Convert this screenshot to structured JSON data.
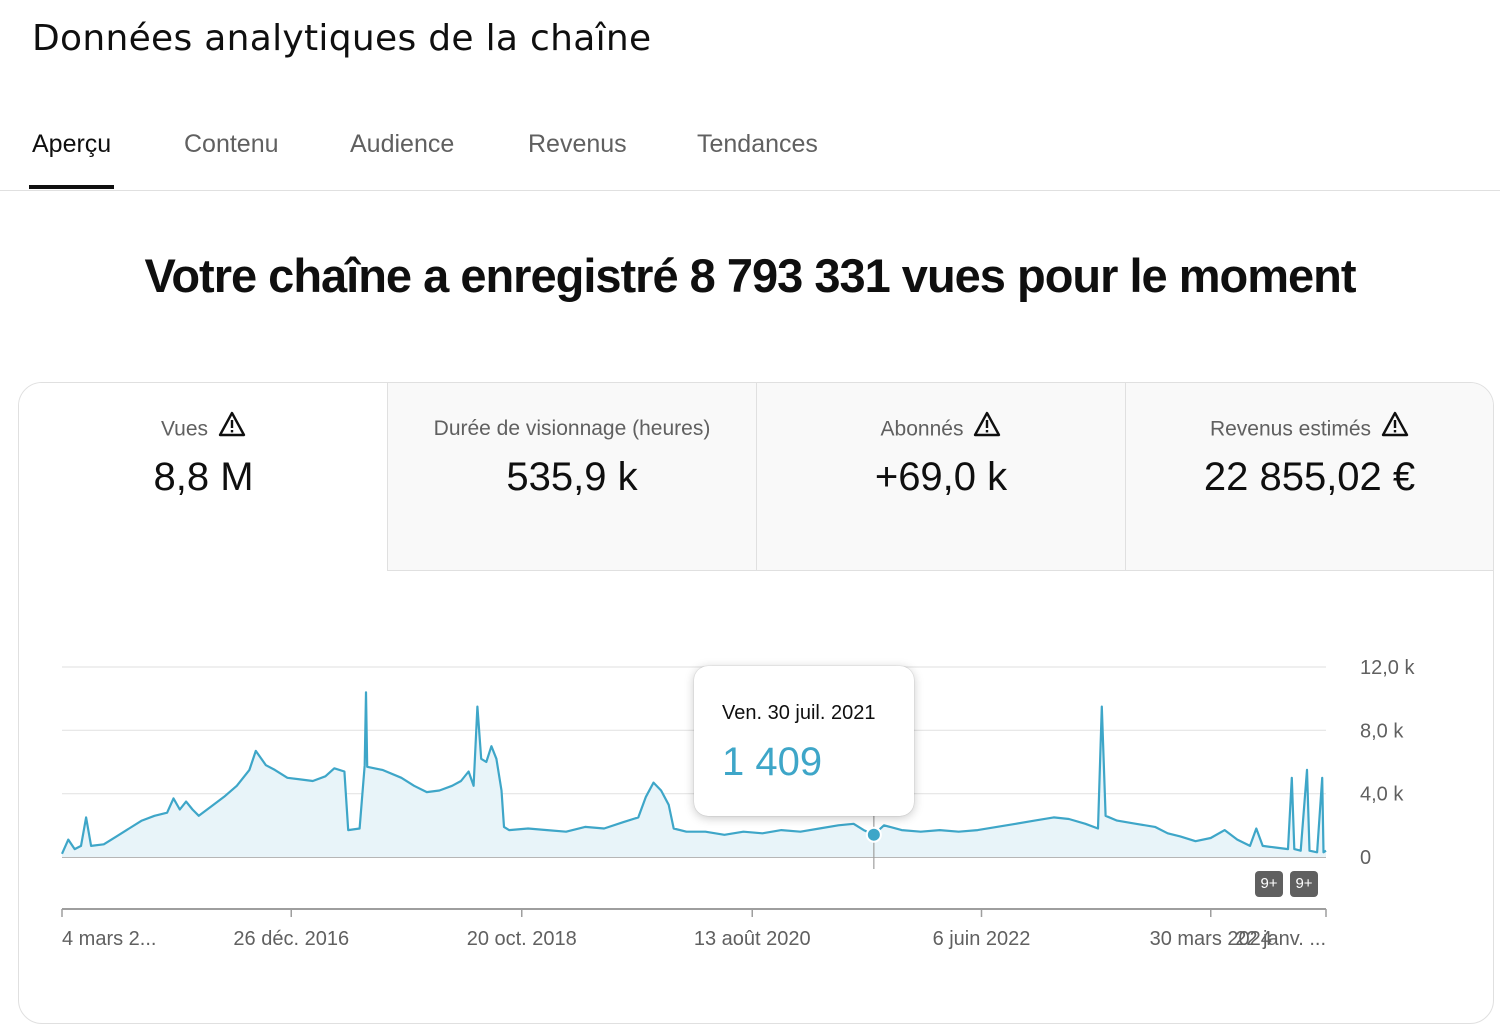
{
  "page_title": "Données analytiques de la chaîne",
  "tabs": [
    {
      "label": "Aperçu",
      "active": true
    },
    {
      "label": "Contenu",
      "active": false
    },
    {
      "label": "Audience",
      "active": false
    },
    {
      "label": "Revenus",
      "active": false
    },
    {
      "label": "Tendances",
      "active": false
    }
  ],
  "headline": "Votre chaîne a enregistré 8 793 331 vues pour le moment",
  "metrics": [
    {
      "label": "Vues",
      "value": "8,8 M",
      "warning": true
    },
    {
      "label": "Durée de visionnage (heures)",
      "value": "535,9 k",
      "warning": false
    },
    {
      "label": "Abonnés",
      "value": "+69,0 k",
      "warning": true
    },
    {
      "label": "Revenus estimés",
      "value": "22 855,02 €",
      "warning": true
    }
  ],
  "tooltip": {
    "date": "Ven. 30 juil. 2021",
    "value": "1 409"
  },
  "badges": [
    "9+",
    "9+"
  ],
  "colors": {
    "line": "#3ea6c8",
    "fill": "#e8f4f9",
    "text": "#0f0f0f",
    "muted": "#606060"
  },
  "chart_data": {
    "type": "line",
    "title": "",
    "xlabel": "",
    "ylabel": "Vues",
    "ylim": [
      0,
      12000
    ],
    "y_ticks": [
      {
        "value": 12000,
        "label": "12,0 k"
      },
      {
        "value": 8000,
        "label": "8,0 k"
      },
      {
        "value": 4000,
        "label": "4,0 k"
      },
      {
        "value": 0,
        "label": "0"
      }
    ],
    "x_range_years": [
      2015.17,
      2025.15
    ],
    "x_ticks": [
      {
        "t": 2015.17,
        "label": "4 mars 2..."
      },
      {
        "t": 2016.98,
        "label": "26 déc. 2016"
      },
      {
        "t": 2018.8,
        "label": "20 oct. 2018"
      },
      {
        "t": 2020.62,
        "label": "13 août 2020"
      },
      {
        "t": 2022.43,
        "label": "6 juin 2022"
      },
      {
        "t": 2024.24,
        "label": "30 mars 2024"
      },
      {
        "t": 2025.06,
        "label": "22 janv. ..."
      }
    ],
    "highlight": {
      "t": 2021.58,
      "value": 1409
    },
    "series": [
      {
        "name": "Vues",
        "points": [
          [
            2015.17,
            200
          ],
          [
            2015.22,
            1100
          ],
          [
            2015.27,
            500
          ],
          [
            2015.32,
            700
          ],
          [
            2015.36,
            2500
          ],
          [
            2015.4,
            700
          ],
          [
            2015.5,
            800
          ],
          [
            2015.6,
            1300
          ],
          [
            2015.7,
            1800
          ],
          [
            2015.8,
            2300
          ],
          [
            2015.9,
            2600
          ],
          [
            2016.0,
            2800
          ],
          [
            2016.05,
            3700
          ],
          [
            2016.1,
            3000
          ],
          [
            2016.15,
            3500
          ],
          [
            2016.2,
            3000
          ],
          [
            2016.25,
            2600
          ],
          [
            2016.35,
            3200
          ],
          [
            2016.45,
            3800
          ],
          [
            2016.55,
            4500
          ],
          [
            2016.65,
            5500
          ],
          [
            2016.7,
            6700
          ],
          [
            2016.78,
            5800
          ],
          [
            2016.85,
            5500
          ],
          [
            2016.95,
            5000
          ],
          [
            2017.05,
            4900
          ],
          [
            2017.15,
            4800
          ],
          [
            2017.25,
            5100
          ],
          [
            2017.32,
            5600
          ],
          [
            2017.4,
            5400
          ],
          [
            2017.43,
            1700
          ],
          [
            2017.52,
            1800
          ],
          [
            2017.56,
            5800
          ],
          [
            2017.57,
            10400
          ],
          [
            2017.58,
            5700
          ],
          [
            2017.7,
            5500
          ],
          [
            2017.85,
            5000
          ],
          [
            2017.95,
            4500
          ],
          [
            2018.05,
            4100
          ],
          [
            2018.15,
            4200
          ],
          [
            2018.25,
            4500
          ],
          [
            2018.32,
            4800
          ],
          [
            2018.38,
            5400
          ],
          [
            2018.42,
            4500
          ],
          [
            2018.45,
            9500
          ],
          [
            2018.48,
            6200
          ],
          [
            2018.52,
            6000
          ],
          [
            2018.56,
            7000
          ],
          [
            2018.6,
            6200
          ],
          [
            2018.64,
            4200
          ],
          [
            2018.66,
            1900
          ],
          [
            2018.7,
            1700
          ],
          [
            2018.85,
            1800
          ],
          [
            2019.0,
            1700
          ],
          [
            2019.15,
            1600
          ],
          [
            2019.3,
            1900
          ],
          [
            2019.45,
            1800
          ],
          [
            2019.6,
            2200
          ],
          [
            2019.72,
            2500
          ],
          [
            2019.78,
            3800
          ],
          [
            2019.84,
            4700
          ],
          [
            2019.9,
            4200
          ],
          [
            2019.96,
            3300
          ],
          [
            2020.0,
            1800
          ],
          [
            2020.1,
            1600
          ],
          [
            2020.25,
            1600
          ],
          [
            2020.4,
            1400
          ],
          [
            2020.55,
            1600
          ],
          [
            2020.7,
            1500
          ],
          [
            2020.85,
            1700
          ],
          [
            2021.0,
            1600
          ],
          [
            2021.15,
            1800
          ],
          [
            2021.3,
            2000
          ],
          [
            2021.42,
            2100
          ],
          [
            2021.5,
            1700
          ],
          [
            2021.58,
            1409
          ],
          [
            2021.66,
            2000
          ],
          [
            2021.8,
            1700
          ],
          [
            2021.95,
            1600
          ],
          [
            2022.1,
            1700
          ],
          [
            2022.25,
            1600
          ],
          [
            2022.4,
            1700
          ],
          [
            2022.55,
            1900
          ],
          [
            2022.7,
            2100
          ],
          [
            2022.85,
            2300
          ],
          [
            2023.0,
            2500
          ],
          [
            2023.12,
            2400
          ],
          [
            2023.25,
            2100
          ],
          [
            2023.35,
            1800
          ],
          [
            2023.38,
            9500
          ],
          [
            2023.41,
            2600
          ],
          [
            2023.5,
            2300
          ],
          [
            2023.65,
            2100
          ],
          [
            2023.8,
            1900
          ],
          [
            2023.9,
            1500
          ],
          [
            2024.0,
            1300
          ],
          [
            2024.12,
            1000
          ],
          [
            2024.24,
            1200
          ],
          [
            2024.35,
            1700
          ],
          [
            2024.45,
            1100
          ],
          [
            2024.55,
            700
          ],
          [
            2024.6,
            1800
          ],
          [
            2024.65,
            700
          ],
          [
            2024.75,
            600
          ],
          [
            2024.85,
            500
          ],
          [
            2024.88,
            5000
          ],
          [
            2024.9,
            500
          ],
          [
            2024.95,
            400
          ],
          [
            2025.0,
            5500
          ],
          [
            2025.02,
            400
          ],
          [
            2025.08,
            300
          ],
          [
            2025.12,
            5000
          ],
          [
            2025.13,
            300
          ],
          [
            2025.15,
            400
          ]
        ]
      }
    ]
  }
}
